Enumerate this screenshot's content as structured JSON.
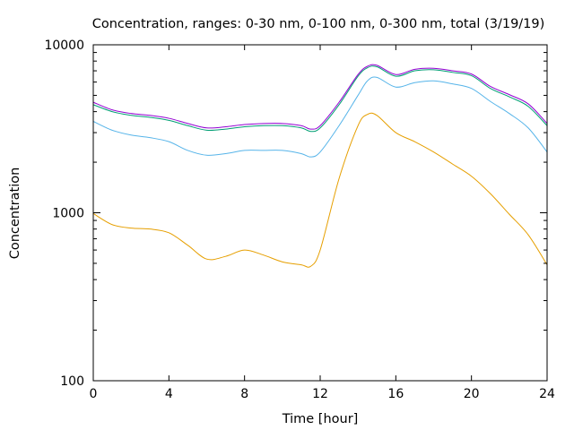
{
  "chart_data": {
    "type": "line",
    "title": "Concentration, ranges: 0-30 nm, 0-100 nm, 0-300 nm, total (3/19/19)",
    "xlabel": "Time [hour]",
    "ylabel": "Concentration",
    "xlim": [
      0,
      24
    ],
    "ylim": [
      100,
      10000
    ],
    "yscale": "log",
    "xticks": [
      0,
      4,
      8,
      12,
      16,
      20,
      24
    ],
    "yticks": [
      100,
      1000,
      10000
    ],
    "xtick_labels": [
      "0",
      "4",
      "8",
      "12",
      "16",
      "20",
      "24"
    ],
    "ytick_labels": [
      "100",
      "1000",
      "10000"
    ],
    "grid": false,
    "legend": false,
    "x": [
      0,
      1,
      2,
      3,
      4,
      5,
      6,
      7,
      8,
      9,
      10,
      11,
      11.5,
      12,
      13,
      14,
      14.5,
      15,
      16,
      17,
      18,
      19,
      20,
      21,
      22,
      23,
      24
    ],
    "series": [
      {
        "color": "#e69f00",
        "values": [
          990,
          850,
          810,
          800,
          760,
          640,
          530,
          550,
          600,
          560,
          510,
          490,
          480,
          600,
          1600,
          3300,
          3850,
          3800,
          3000,
          2650,
          2300,
          1950,
          1650,
          1300,
          980,
          740,
          490
        ]
      },
      {
        "color": "#56b4e9",
        "values": [
          3500,
          3100,
          2900,
          2800,
          2650,
          2350,
          2200,
          2250,
          2350,
          2350,
          2350,
          2250,
          2150,
          2300,
          3300,
          5000,
          6100,
          6400,
          5600,
          5950,
          6100,
          5850,
          5500,
          4600,
          3900,
          3200,
          2300
        ]
      },
      {
        "color": "#009e73",
        "values": [
          4400,
          4000,
          3800,
          3700,
          3550,
          3300,
          3100,
          3150,
          3250,
          3300,
          3300,
          3200,
          3050,
          3200,
          4400,
          6500,
          7300,
          7400,
          6500,
          7000,
          7100,
          6850,
          6550,
          5500,
          4900,
          4300,
          3300
        ]
      },
      {
        "color": "#9400d3",
        "values": [
          4550,
          4100,
          3900,
          3800,
          3650,
          3400,
          3200,
          3250,
          3350,
          3400,
          3400,
          3300,
          3150,
          3300,
          4550,
          6650,
          7450,
          7550,
          6650,
          7150,
          7250,
          7000,
          6700,
          5650,
          5050,
          4450,
          3400
        ]
      }
    ]
  }
}
